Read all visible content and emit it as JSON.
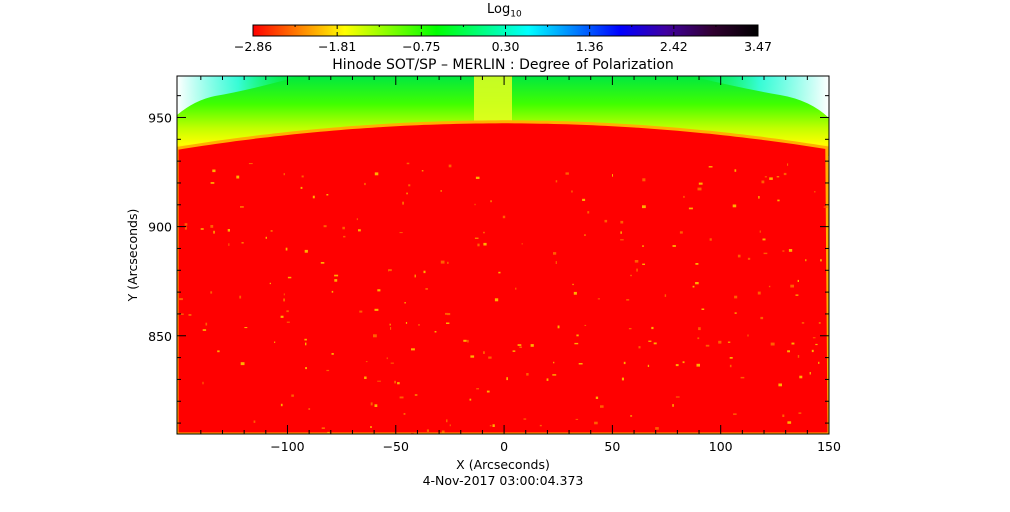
{
  "chart_data": {
    "type": "heatmap",
    "title": "Hinode SOT/SP – MERLIN : Degree of Polarization",
    "subtitle": "4-Nov-2017 03:00:04.373",
    "xlabel": "X (Arcseconds)",
    "ylabel": "Y (Arcseconds)",
    "xlim": [
      -151,
      150
    ],
    "ylim": [
      805,
      969
    ],
    "x_ticks": [
      -100,
      -50,
      0,
      50,
      100,
      150
    ],
    "x_tick_labels": [
      "−100",
      "−50",
      "0",
      "50",
      "100",
      "150"
    ],
    "y_ticks": [
      850,
      900,
      950
    ],
    "y_tick_labels": [
      "850",
      "900",
      "950"
    ],
    "colorbar": {
      "label_base": "Log",
      "label_sub": "10",
      "scale": "log10",
      "range": [
        -2.86,
        3.47
      ],
      "tick_labels": [
        "−2.86",
        "−1.81",
        "−0.75",
        "0.30",
        "1.36",
        "2.42",
        "3.47"
      ],
      "colors": [
        "#ff0000",
        "#ff8000",
        "#ffff00",
        "#80ff00",
        "#00ff00",
        "#00ff80",
        "#00ffff",
        "#0080ff",
        "#0000ff",
        "#4000a0",
        "#300030",
        "#000000"
      ],
      "placement": "top"
    },
    "features": {
      "solar_limb_y_at_x0": 948,
      "solar_limb_y_at_edges": 936,
      "disk_color": "#ff0000",
      "off_limb_colors": [
        "#ffff00",
        "#80ff00",
        "#00ff80",
        "#00ffff",
        "#ffffff"
      ]
    }
  }
}
